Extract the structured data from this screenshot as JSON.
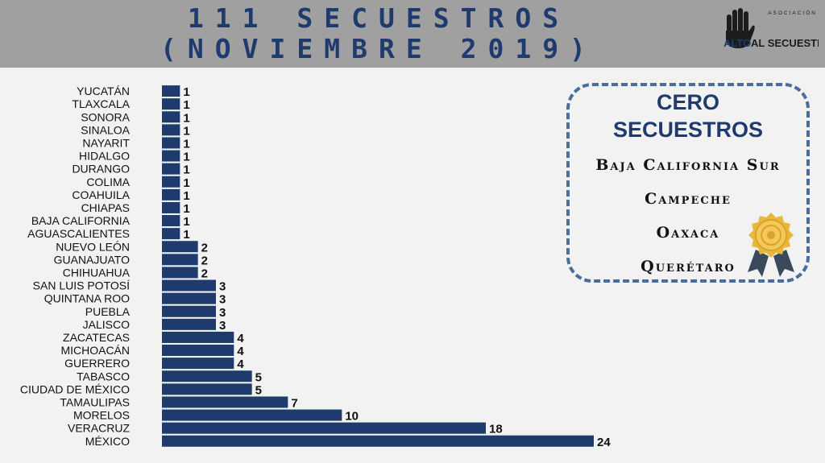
{
  "header": {
    "title_line1": "111 SECUESTROS",
    "title_line2": "(NOVIEMBRE 2019)",
    "logo": {
      "icon": "raised-hand-icon",
      "small_text": "ASOCIACIÓN",
      "word1": "ALTO",
      "word2": "AL SECUESTRO"
    }
  },
  "chart_data": {
    "type": "bar",
    "orientation": "horizontal",
    "categories": [
      "YUCATÁN",
      "TLAXCALA",
      "SONORA",
      "SINALOA",
      "NAYARIT",
      "HIDALGO",
      "DURANGO",
      "COLIMA",
      "COAHUILA",
      "CHIAPAS",
      "BAJA CALIFORNIA",
      "AGUASCALIENTES",
      "NUEVO LEÓN",
      "GUANAJUATO",
      "CHIHUAHUA",
      "SAN LUIS POTOSÍ",
      "QUINTANA ROO",
      "PUEBLA",
      "JALISCO",
      "ZACATECAS",
      "MICHOACÁN",
      "GUERRERO",
      "TABASCO",
      "CIUDAD DE MÉXICO",
      "TAMAULIPAS",
      "MORELOS",
      "VERACRUZ",
      "MÉXICO"
    ],
    "values": [
      1,
      1,
      1,
      1,
      1,
      1,
      1,
      1,
      1,
      1,
      1,
      1,
      2,
      2,
      2,
      3,
      3,
      3,
      3,
      4,
      4,
      4,
      5,
      5,
      7,
      10,
      18,
      24
    ],
    "xlim": [
      0,
      24
    ],
    "grid": false,
    "legend": "none",
    "bar_color": "#1f3a6d",
    "data_labels": true
  },
  "cero": {
    "title_line1": "CERO",
    "title_line2": "SECUESTROS",
    "states": [
      "Baja California Sur",
      "Campeche",
      "Oaxaca",
      "Querétaro"
    ],
    "badge_icon": "award-ribbon-icon"
  },
  "colors": {
    "header_bg": "#a0a0a0",
    "title": "#1f3a6d",
    "bar": "#1f3a6d",
    "box_border": "#4a6d9c",
    "badge": "#e9b73c"
  }
}
